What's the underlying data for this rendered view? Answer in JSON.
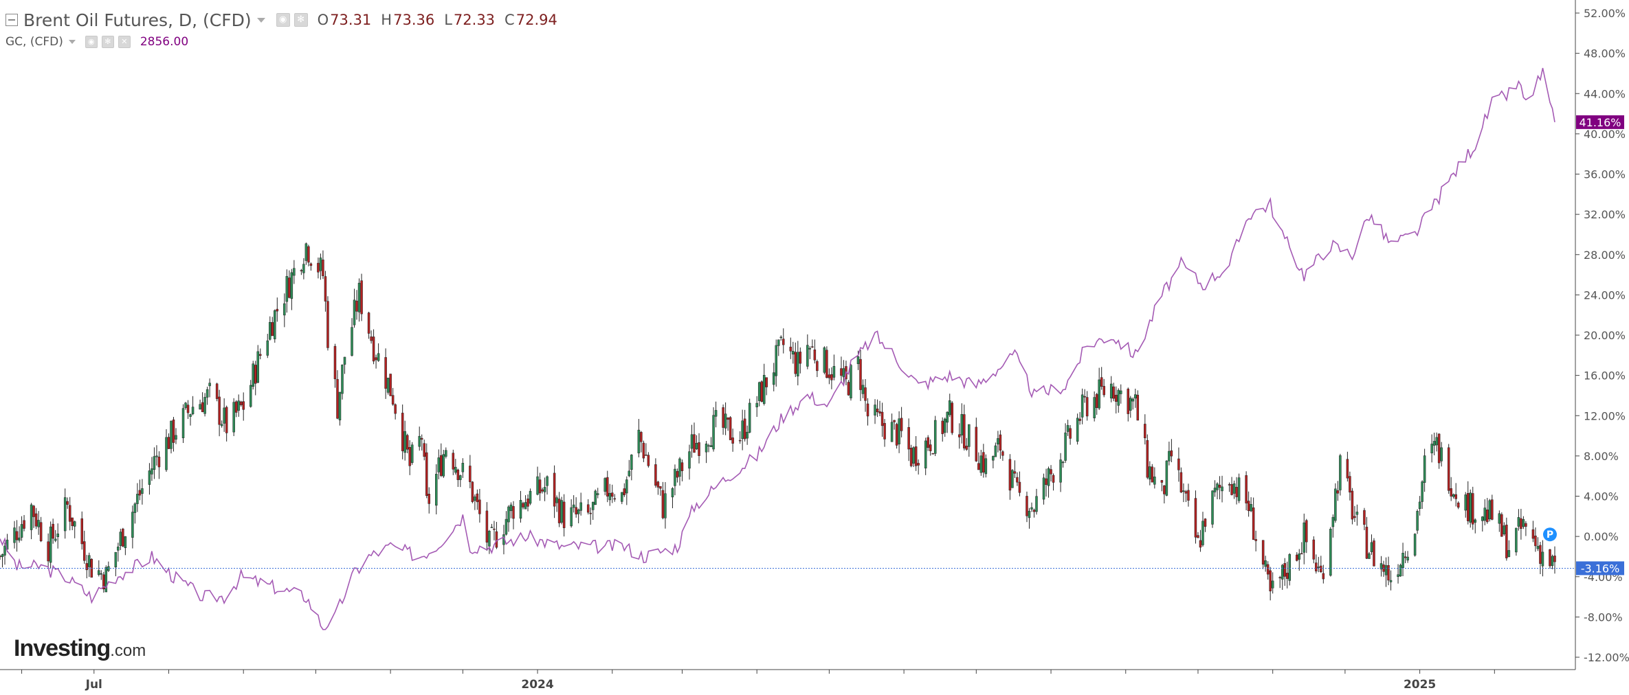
{
  "header": {
    "title": "Brent Oil Futures, D, (CFD)",
    "open_key": "O",
    "open": "73.31",
    "high_key": "H",
    "high": "73.36",
    "low_key": "L",
    "low": "72.33",
    "close_key": "C",
    "close": "72.94",
    "compare_title": "GC, (CFD)",
    "compare_value": "2856.00"
  },
  "logo": {
    "brand": "Investing",
    "domain": ".com"
  },
  "marker": {
    "label": "P"
  },
  "chart_data": {
    "type": "line",
    "y_axis": {
      "position": "right",
      "unit": "%",
      "ylim": [
        -12,
        52
      ],
      "ticks": [
        "52.00%",
        "48.00%",
        "44.00%",
        "40.00%",
        "36.00%",
        "32.00%",
        "28.00%",
        "24.00%",
        "20.00%",
        "16.00%",
        "12.00%",
        "8.00%",
        "4.00%",
        "0.00%",
        "-4.00%",
        "-8.00%",
        "-12.00%"
      ]
    },
    "x_axis": {
      "labels": [
        {
          "date": "2023-07-01",
          "text": "Jul"
        },
        {
          "date": "2024-01-01",
          "text": "2024"
        },
        {
          "date": "2025-01-01",
          "text": "2025"
        }
      ],
      "range": [
        "2023-05-23",
        "2025-02-26"
      ]
    },
    "grid": false,
    "reference_line": {
      "value": -3.16,
      "label": "-3.16%",
      "color": "#3a6fd8"
    },
    "series": [
      {
        "name": "Brent Oil Futures",
        "kind": "candlestick",
        "up_color": "#2e8b57",
        "down_color": "#b22222",
        "last_value": -3.16,
        "points": [
          [
            "2023-05-23",
            -2.0
          ],
          [
            "2023-06-05",
            3.0
          ],
          [
            "2023-06-12",
            -1.0
          ],
          [
            "2023-06-20",
            3.0
          ],
          [
            "2023-06-30",
            -3.0
          ],
          [
            "2023-07-06",
            -4.0
          ],
          [
            "2023-07-14",
            1.0
          ],
          [
            "2023-07-27",
            8.0
          ],
          [
            "2023-08-11",
            13.0
          ],
          [
            "2023-08-18",
            14.0
          ],
          [
            "2023-08-25",
            11.0
          ],
          [
            "2023-09-01",
            13.0
          ],
          [
            "2023-09-12",
            21.0
          ],
          [
            "2023-09-27",
            29.0
          ],
          [
            "2023-10-04",
            26.0
          ],
          [
            "2023-10-06",
            20.0
          ],
          [
            "2023-10-10",
            13.0
          ],
          [
            "2023-10-13",
            18.0
          ],
          [
            "2023-10-19",
            24.0
          ],
          [
            "2023-10-25",
            19.0
          ],
          [
            "2023-11-02",
            14.0
          ],
          [
            "2023-11-09",
            7.0
          ],
          [
            "2023-11-14",
            10.0
          ],
          [
            "2023-11-16",
            3.0
          ],
          [
            "2023-11-24",
            9.0
          ],
          [
            "2023-12-04",
            5.0
          ],
          [
            "2023-12-12",
            -1.0
          ],
          [
            "2023-12-22",
            3.0
          ],
          [
            "2024-01-05",
            5.0
          ],
          [
            "2024-01-12",
            2.0
          ],
          [
            "2024-01-22",
            2.0
          ],
          [
            "2024-01-31",
            5.0
          ],
          [
            "2024-02-05",
            4.0
          ],
          [
            "2024-02-12",
            10.0
          ],
          [
            "2024-02-15",
            8.0
          ],
          [
            "2024-02-22",
            3.0
          ],
          [
            "2024-03-05",
            9.0
          ],
          [
            "2024-03-15",
            11.0
          ],
          [
            "2024-03-25",
            10.0
          ],
          [
            "2024-04-04",
            15.0
          ],
          [
            "2024-04-12",
            19.0
          ],
          [
            "2024-04-18",
            17.0
          ],
          [
            "2024-04-22",
            19.0
          ],
          [
            "2024-04-30",
            17.0
          ],
          [
            "2024-05-08",
            15.0
          ],
          [
            "2024-05-13",
            17.0
          ],
          [
            "2024-05-17",
            12.0
          ],
          [
            "2024-05-31",
            10.0
          ],
          [
            "2024-06-04",
            8.0
          ],
          [
            "2024-06-14",
            10.0
          ],
          [
            "2024-06-20",
            12.0
          ],
          [
            "2024-06-27",
            10.0
          ],
          [
            "2024-07-05",
            7.0
          ],
          [
            "2024-07-11",
            9.0
          ],
          [
            "2024-07-18",
            4.0
          ],
          [
            "2024-07-25",
            3.0
          ],
          [
            "2024-08-07",
            9.0
          ],
          [
            "2024-08-15",
            13.0
          ],
          [
            "2024-08-26",
            15.0
          ],
          [
            "2024-09-05",
            13.0
          ],
          [
            "2024-09-10",
            7.0
          ],
          [
            "2024-09-16",
            4.0
          ],
          [
            "2024-09-20",
            8.0
          ],
          [
            "2024-10-01",
            -1.0
          ],
          [
            "2024-10-04",
            2.0
          ],
          [
            "2024-10-08",
            4.0
          ],
          [
            "2024-10-14",
            6.0
          ],
          [
            "2024-10-22",
            3.0
          ],
          [
            "2024-10-31",
            -6.0
          ],
          [
            "2024-11-05",
            -4.0
          ],
          [
            "2024-11-14",
            0.0
          ],
          [
            "2024-11-21",
            -4.0
          ],
          [
            "2024-11-29",
            7.0
          ],
          [
            "2024-12-06",
            1.0
          ],
          [
            "2024-12-13",
            -2.0
          ],
          [
            "2024-12-20",
            -4.0
          ],
          [
            "2024-12-30",
            1.0
          ],
          [
            "2025-01-03",
            7.0
          ],
          [
            "2025-01-08",
            9.0
          ],
          [
            "2025-01-15",
            5.0
          ],
          [
            "2025-01-21",
            3.0
          ],
          [
            "2025-01-31",
            2.0
          ],
          [
            "2025-02-07",
            -1.0
          ],
          [
            "2025-02-13",
            1.0
          ],
          [
            "2025-02-19",
            -1.0
          ],
          [
            "2025-02-26",
            -3.16
          ]
        ]
      },
      {
        "name": "GC",
        "kind": "line",
        "color": "#a45ab4",
        "last_value": 41.16,
        "points": [
          [
            "2023-05-23",
            0.0
          ],
          [
            "2023-05-30",
            -3.0
          ],
          [
            "2023-06-09",
            -3.0
          ],
          [
            "2023-06-19",
            -4.0
          ],
          [
            "2023-06-30",
            -6.0
          ],
          [
            "2023-07-10",
            -4.0
          ],
          [
            "2023-07-18",
            -3.0
          ],
          [
            "2023-07-25",
            -2.0
          ],
          [
            "2023-08-03",
            -4.0
          ],
          [
            "2023-08-15",
            -6.0
          ],
          [
            "2023-08-24",
            -6.0
          ],
          [
            "2023-08-31",
            -4.0
          ],
          [
            "2023-09-13",
            -5.0
          ],
          [
            "2023-09-27",
            -6.0
          ],
          [
            "2023-10-04",
            -9.0
          ],
          [
            "2023-10-09",
            -8.0
          ],
          [
            "2023-10-16",
            -4.0
          ],
          [
            "2023-10-23",
            -2.0
          ],
          [
            "2023-11-01",
            -1.0
          ],
          [
            "2023-11-13",
            -2.0
          ],
          [
            "2023-11-20",
            -1.0
          ],
          [
            "2023-12-01",
            2.0
          ],
          [
            "2023-12-04",
            -1.0
          ],
          [
            "2023-12-12",
            -1.0
          ],
          [
            "2023-12-27",
            0.0
          ],
          [
            "2024-01-11",
            -1.0
          ],
          [
            "2024-01-25",
            -1.0
          ],
          [
            "2024-02-06",
            -1.0
          ],
          [
            "2024-02-14",
            -2.0
          ],
          [
            "2024-02-28",
            -1.0
          ],
          [
            "2024-03-06",
            3.0
          ],
          [
            "2024-03-20",
            6.0
          ],
          [
            "2024-04-01",
            8.0
          ],
          [
            "2024-04-12",
            12.0
          ],
          [
            "2024-04-22",
            14.0
          ],
          [
            "2024-05-01",
            13.0
          ],
          [
            "2024-05-10",
            17.0
          ],
          [
            "2024-05-20",
            20.0
          ],
          [
            "2024-05-28",
            18.0
          ],
          [
            "2024-06-07",
            15.0
          ],
          [
            "2024-06-20",
            16.0
          ],
          [
            "2024-07-01",
            15.0
          ],
          [
            "2024-07-17",
            18.0
          ],
          [
            "2024-07-25",
            14.0
          ],
          [
            "2024-08-07",
            15.0
          ],
          [
            "2024-08-16",
            19.0
          ],
          [
            "2024-08-26",
            20.0
          ],
          [
            "2024-09-05",
            18.0
          ],
          [
            "2024-09-16",
            24.0
          ],
          [
            "2024-09-24",
            27.0
          ],
          [
            "2024-10-03",
            25.0
          ],
          [
            "2024-10-14",
            27.0
          ],
          [
            "2024-10-22",
            32.0
          ],
          [
            "2024-10-31",
            33.0
          ],
          [
            "2024-11-05",
            30.0
          ],
          [
            "2024-11-14",
            26.0
          ],
          [
            "2024-11-25",
            29.0
          ],
          [
            "2024-12-04",
            28.0
          ],
          [
            "2024-12-11",
            32.0
          ],
          [
            "2024-12-20",
            29.0
          ],
          [
            "2024-12-30",
            30.0
          ],
          [
            "2025-01-07",
            33.0
          ],
          [
            "2025-01-15",
            36.0
          ],
          [
            "2025-01-24",
            39.0
          ],
          [
            "2025-01-31",
            43.0
          ],
          [
            "2025-02-07",
            44.0
          ],
          [
            "2025-02-11",
            45.0
          ],
          [
            "2025-02-14",
            43.0
          ],
          [
            "2025-02-21",
            46.0
          ],
          [
            "2025-02-26",
            41.16
          ]
        ]
      }
    ]
  }
}
